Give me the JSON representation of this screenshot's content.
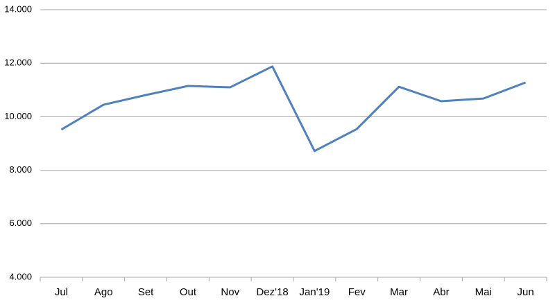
{
  "chart_data": {
    "type": "line",
    "categories": [
      "Jul",
      "Ago",
      "Set",
      "Out",
      "Nov",
      "Dez'18",
      "Jan'19",
      "Fev",
      "Mar",
      "Abr",
      "Mai",
      "Jun"
    ],
    "values": [
      9520,
      10450,
      10810,
      11150,
      11100,
      11880,
      8720,
      9540,
      11120,
      10580,
      10680,
      11280
    ],
    "color": "#4f81bd",
    "ylim": [
      4000,
      14000
    ],
    "yticks": [
      {
        "value": 4000,
        "label": "4.000"
      },
      {
        "value": 6000,
        "label": "6.000"
      },
      {
        "value": 8000,
        "label": "8.000"
      },
      {
        "value": 10000,
        "label": "10.000"
      },
      {
        "value": 12000,
        "label": "12.000"
      },
      {
        "value": 14000,
        "label": "14.000"
      }
    ],
    "grid": true
  }
}
